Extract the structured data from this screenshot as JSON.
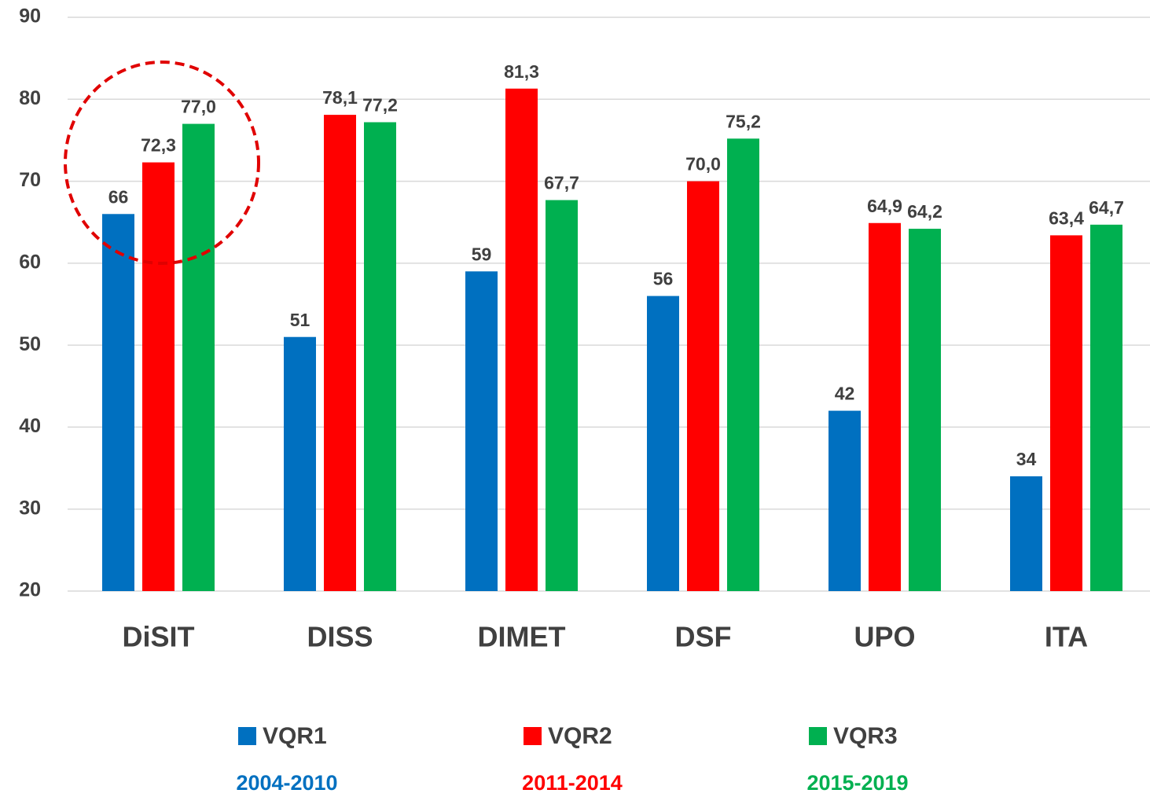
{
  "chart_data": {
    "type": "bar",
    "categories": [
      "DiSIT",
      "DISS",
      "DIMET",
      "DSF",
      "UPO",
      "ITA"
    ],
    "series": [
      {
        "name": "VQR1",
        "period": "2004-2010",
        "color": "#0070c0",
        "values": [
          66,
          51,
          59,
          56,
          42,
          34
        ]
      },
      {
        "name": "VQR2",
        "period": "2011-2014",
        "color": "#ff0000",
        "values": [
          72.3,
          78.1,
          81.3,
          70.0,
          64.9,
          63.4
        ],
        "value_labels": [
          "72,3",
          "78,1",
          "81,3",
          "70,0",
          "64,9",
          "63,4"
        ]
      },
      {
        "name": "VQR3",
        "period": "2015-2019",
        "color": "#00b050",
        "values": [
          77.0,
          77.2,
          67.7,
          75.2,
          64.2,
          64.7
        ],
        "value_labels": [
          "77,0",
          "77,2",
          "67,7",
          "75,2",
          "64,2",
          "64,7"
        ]
      }
    ],
    "ylim": [
      20,
      90
    ],
    "yticks": [
      20,
      30,
      40,
      50,
      60,
      70,
      80,
      90
    ],
    "grid": true,
    "legend": "bottom"
  }
}
